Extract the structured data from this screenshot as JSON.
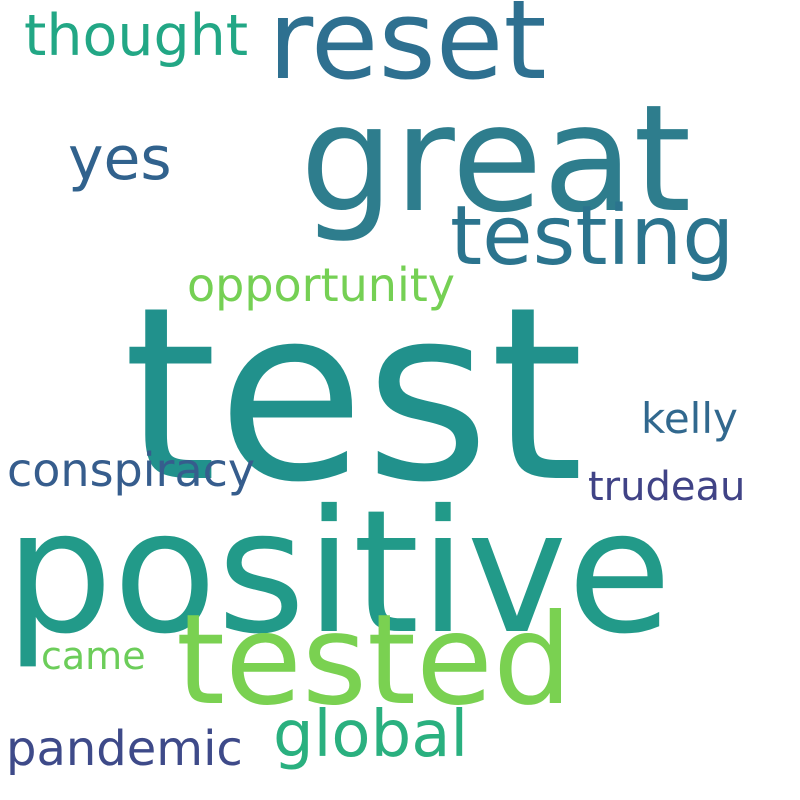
{
  "background": "#ffffff",
  "words": [
    {
      "key": "test",
      "text": "test",
      "color": "#21918c"
    },
    {
      "key": "positive",
      "text": "positive",
      "color": "#229a89"
    },
    {
      "key": "great",
      "text": "great",
      "color": "#2e7d8d"
    },
    {
      "key": "reset",
      "text": "reset",
      "color": "#2e7090"
    },
    {
      "key": "tested",
      "text": "tested",
      "color": "#7ad151"
    },
    {
      "key": "testing",
      "text": "testing",
      "color": "#2b748e"
    },
    {
      "key": "thought",
      "text": "thought",
      "color": "#22a785"
    },
    {
      "key": "yes",
      "text": "yes",
      "color": "#31628d"
    },
    {
      "key": "opportunity",
      "text": "opportunity",
      "color": "#75d054"
    },
    {
      "key": "conspiracy",
      "text": "conspiracy",
      "color": "#365d8d"
    },
    {
      "key": "kelly",
      "text": "kelly",
      "color": "#31688e"
    },
    {
      "key": "trudeau",
      "text": "trudeau",
      "color": "#404386"
    },
    {
      "key": "came",
      "text": "came",
      "color": "#6ccd5a"
    },
    {
      "key": "global",
      "text": "global",
      "color": "#2ab07f"
    },
    {
      "key": "pandemic",
      "text": "pandemic",
      "color": "#3e4a89"
    }
  ]
}
